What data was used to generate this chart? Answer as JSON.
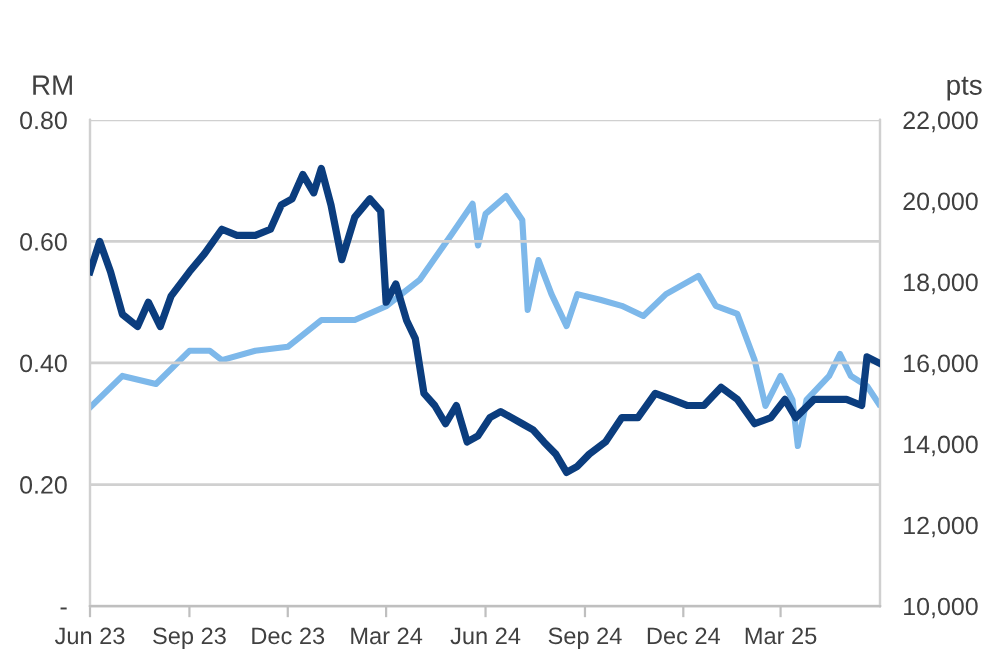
{
  "chart_data": {
    "type": "line",
    "ylabel": "RM",
    "y2label": "pts",
    "grid": "y",
    "marker": "none",
    "line_style": "solid",
    "xlim": [
      "2023-06-01",
      "2025-06-01"
    ],
    "xticks": [
      {
        "value": "2023-06-01",
        "label": "Jun 23"
      },
      {
        "value": "2023-09-01",
        "label": "Sep 23"
      },
      {
        "value": "2023-12-01",
        "label": "Dec 23"
      },
      {
        "value": "2024-03-01",
        "label": "Mar 24"
      },
      {
        "value": "2024-06-01",
        "label": "Jun 24"
      },
      {
        "value": "2024-09-01",
        "label": "Sep 24"
      },
      {
        "value": "2024-12-01",
        "label": "Dec 24"
      },
      {
        "value": "2025-03-01",
        "label": "Mar 25"
      }
    ],
    "ylim": [
      0,
      0.8
    ],
    "yticks": [
      {
        "value": 0,
        "label": "-"
      },
      {
        "value": 0.2,
        "label": "0.20"
      },
      {
        "value": 0.4,
        "label": "0.40"
      },
      {
        "value": 0.6,
        "label": "0.60"
      },
      {
        "value": 0.8,
        "label": "0.80"
      }
    ],
    "y2lim": [
      10000,
      22000
    ],
    "y2ticks": [
      {
        "value": 10000,
        "label": "10,000"
      },
      {
        "value": 12000,
        "label": "12,000"
      },
      {
        "value": 14000,
        "label": "14,000"
      },
      {
        "value": 16000,
        "label": "16,000"
      },
      {
        "value": 18000,
        "label": "18,000"
      },
      {
        "value": 20000,
        "label": "20,000"
      },
      {
        "value": 22000,
        "label": "22,000"
      }
    ],
    "series": [
      {
        "color": "#0b3d7e",
        "x": [
          "2023-06-01",
          "2023-06-10",
          "2023-06-20",
          "2023-07-01",
          "2023-07-15",
          "2023-07-25",
          "2023-08-05",
          "2023-08-15",
          "2023-09-01",
          "2023-09-15",
          "2023-10-01",
          "2023-10-15",
          "2023-11-01",
          "2023-11-15",
          "2023-11-25",
          "2023-12-05",
          "2023-12-15",
          "2023-12-25",
          "2024-01-01",
          "2024-01-10",
          "2024-01-20",
          "2024-02-01",
          "2024-02-15",
          "2024-02-25",
          "2024-03-01",
          "2024-03-10",
          "2024-03-20",
          "2024-03-28",
          "2024-04-05",
          "2024-04-15",
          "2024-04-25",
          "2024-05-05",
          "2024-05-15",
          "2024-05-25",
          "2024-06-05",
          "2024-06-15",
          "2024-06-25",
          "2024-07-05",
          "2024-07-15",
          "2024-07-25",
          "2024-08-05",
          "2024-08-15",
          "2024-08-25",
          "2024-09-05",
          "2024-09-20",
          "2024-10-05",
          "2024-10-20",
          "2024-11-05",
          "2024-11-20",
          "2024-12-05",
          "2024-12-20",
          "2025-01-05",
          "2025-01-20",
          "2025-02-05",
          "2025-02-20",
          "2025-03-05",
          "2025-03-15",
          "2025-04-01",
          "2025-04-15",
          "2025-05-01",
          "2025-05-15",
          "2025-05-20",
          "2025-05-31"
        ],
        "values": [
          0.55,
          0.6,
          0.55,
          0.48,
          0.46,
          0.5,
          0.46,
          0.51,
          0.55,
          0.58,
          0.62,
          0.61,
          0.61,
          0.62,
          0.66,
          0.67,
          0.71,
          0.68,
          0.72,
          0.66,
          0.57,
          0.64,
          0.67,
          0.65,
          0.5,
          0.53,
          0.47,
          0.44,
          0.35,
          0.33,
          0.3,
          0.33,
          0.27,
          0.28,
          0.31,
          0.32,
          0.31,
          0.3,
          0.29,
          0.27,
          0.25,
          0.22,
          0.23,
          0.25,
          0.27,
          0.31,
          0.31,
          0.35,
          0.34,
          0.33,
          0.33,
          0.36,
          0.34,
          0.3,
          0.31,
          0.34,
          0.31,
          0.34,
          0.34,
          0.34,
          0.33,
          0.41,
          0.4
        ]
      },
      {
        "color": "#7db8ea",
        "axis": "y2",
        "x": [
          "2023-06-01",
          "2023-07-01",
          "2023-08-01",
          "2023-09-01",
          "2023-09-20",
          "2023-10-01",
          "2023-11-01",
          "2023-12-01",
          "2024-01-01",
          "2024-02-01",
          "2024-03-01",
          "2024-04-01",
          "2024-05-01",
          "2024-05-20",
          "2024-05-25",
          "2024-06-01",
          "2024-06-20",
          "2024-07-05",
          "2024-07-10",
          "2024-07-20",
          "2024-08-01",
          "2024-08-15",
          "2024-08-25",
          "2024-09-15",
          "2024-10-05",
          "2024-10-25",
          "2024-11-15",
          "2024-12-15",
          "2024-12-31",
          "2025-01-20",
          "2025-02-05",
          "2025-02-15",
          "2025-03-01",
          "2025-03-12",
          "2025-03-17",
          "2025-03-25",
          "2025-04-15",
          "2025-04-25",
          "2025-05-05",
          "2025-05-20",
          "2025-05-31"
        ],
        "values": [
          14900,
          15680,
          15480,
          16300,
          16300,
          16070,
          16300,
          16400,
          17060,
          17060,
          17400,
          18050,
          19190,
          19930,
          18900,
          19680,
          20120,
          19530,
          17310,
          18540,
          17700,
          16910,
          17700,
          17560,
          17410,
          17160,
          17700,
          18150,
          17410,
          17210,
          16070,
          14940,
          15680,
          15090,
          13950,
          15090,
          15680,
          16220,
          15680,
          15430,
          14990
        ]
      }
    ]
  }
}
